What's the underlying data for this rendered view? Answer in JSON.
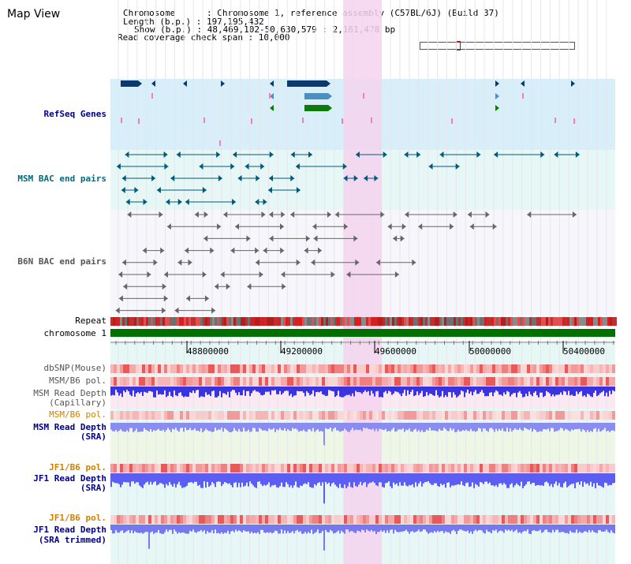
{
  "header": {
    "title": "Map View",
    "info_lines": [
      "Chromosome      : Chromosome 1, reference assembly (C57BL/6J) (Build 37)",
      "Length (b.p.) : 197,195,432",
      "Show (b.p.) : 48,469,102-50,630,579 : 2,161,478 bp",
      "Read coverage check span : 10,000"
    ]
  },
  "tracks": {
    "refseq": "RefSeq Genes",
    "msm_bac": "MSM BAC end pairs",
    "b6n_bac": "B6N BAC end pairs",
    "repeat": "Repeat",
    "chromosome": "chromosome 1",
    "dbsnp": "dbSNP(Mouse)",
    "msm_b6_pol_1": "MSM/B6 pol.",
    "msm_depth_cap_1": "MSM Read Depth",
    "msm_depth_cap_2": "(Capillary)",
    "msm_b6_pol_2": "MSM/B6 pol.",
    "msm_depth_sra_1": "MSM Read Depth",
    "msm_depth_sra_2": "(SRA)",
    "jf1_pol_1": "JF1/B6 pol.",
    "jf1_depth_sra_1": "JF1 Read Depth",
    "jf1_depth_sra_2": "(SRA)",
    "jf1_pol_2": "JF1/B6 pol.",
    "jf1_depth_trim_1": "JF1 Read Depth",
    "jf1_depth_trim_2": "(SRA trimmed)"
  },
  "ruler": {
    "ticks": [
      "48800000",
      "49200000",
      "49600000",
      "50000000",
      "50400000"
    ]
  },
  "colors": {
    "refseq_bg": "#d8eef9",
    "bac_msm_bg": "#e6f7f5",
    "plot_bg": "#e6f7f5",
    "highlight": "#f5d3ee",
    "gene_navy": "#0b3a6e",
    "gene_steel": "#4a8fbf",
    "gene_green": "#0c7a0c",
    "msm_bac_line": "#005a7a",
    "b6n_bac_line": "#666666",
    "depth_blue": "#3b3bdc",
    "pol_red": "#e02020",
    "chromosome_green": "#007000",
    "label_blue": "#00008b",
    "label_teal": "#006b80",
    "label_orange": "#d08000"
  }
}
